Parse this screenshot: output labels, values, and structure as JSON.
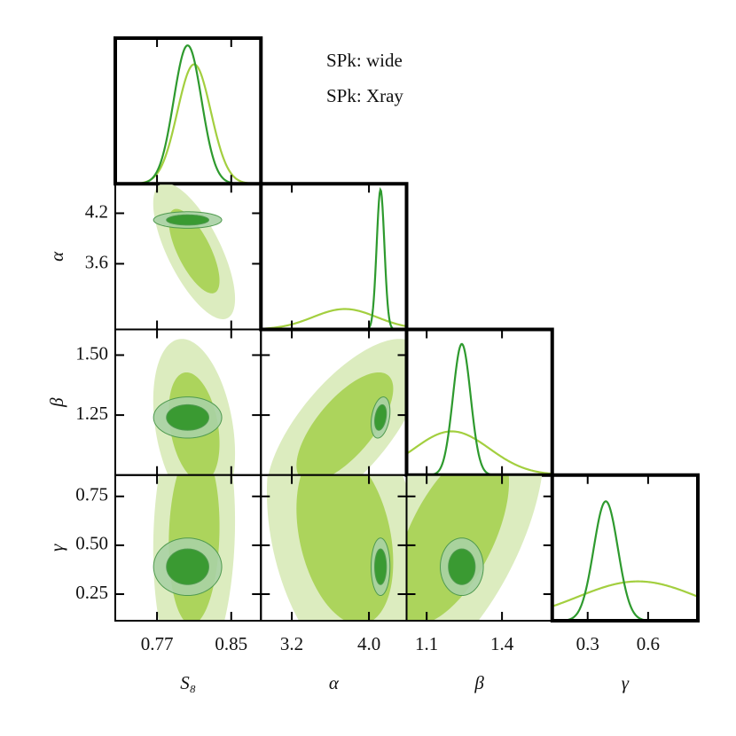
{
  "chart_data": {
    "type": "corner",
    "params": [
      {
        "name": "S₈",
        "xlim": [
          0.725,
          0.882
        ],
        "xticks": [
          0.77,
          0.85
        ]
      },
      {
        "name": "α",
        "xlim": [
          2.88,
          4.39
        ],
        "xticks": [
          3.2,
          {
            "value": 4.0,
            "label": "4.0"
          }
        ],
        "ylim": [
          2.82,
          4.55
        ],
        "yticks": [
          3.6,
          4.2
        ]
      },
      {
        "name": "β",
        "xlim": [
          1.02,
          1.6
        ],
        "xticks": [
          1.1,
          1.4
        ],
        "ylim": [
          1.0,
          1.607
        ],
        "yticks": [
          1.25,
          {
            "value": 1.5,
            "label": "1.50"
          }
        ]
      },
      {
        "name": "γ",
        "xlim": [
          0.124,
          0.847
        ],
        "xticks": [
          0.3,
          0.6
        ],
        "ylim": [
          0.114,
          0.859
        ],
        "yticks": [
          0.25,
          {
            "value": 0.5,
            "label": "0.50"
          },
          0.75
        ]
      }
    ],
    "series": [
      {
        "name": "SPk: wide",
        "color": "#a3cf3f",
        "fill68": "#acd45c",
        "fill95": "#dcecbf",
        "mean": [
          0.81,
          3.75,
          1.2,
          0.55
        ],
        "sigma": [
          0.018,
          0.33,
          0.15,
          0.3
        ],
        "corr": [
          -0.7,
          -0.3,
          0.7,
          0.1,
          -0.3,
          0.6
        ],
        "peak": [
          0.82,
          0.14,
          0.3,
          0.27
        ]
      },
      {
        "name": "SPk: Xray",
        "color": "#2e9a2e",
        "fill68": "#3a9a32",
        "fill95": "#a8d2a4",
        "mean": [
          0.803,
          4.12,
          1.24,
          0.39
        ],
        "sigma": [
          0.015,
          0.04,
          0.035,
          0.06
        ],
        "corr": [
          0.0,
          0.0,
          0.3,
          0.0,
          0.0,
          0.0
        ],
        "peak": [
          0.95,
          0.96,
          0.9,
          0.82
        ]
      }
    ]
  }
}
